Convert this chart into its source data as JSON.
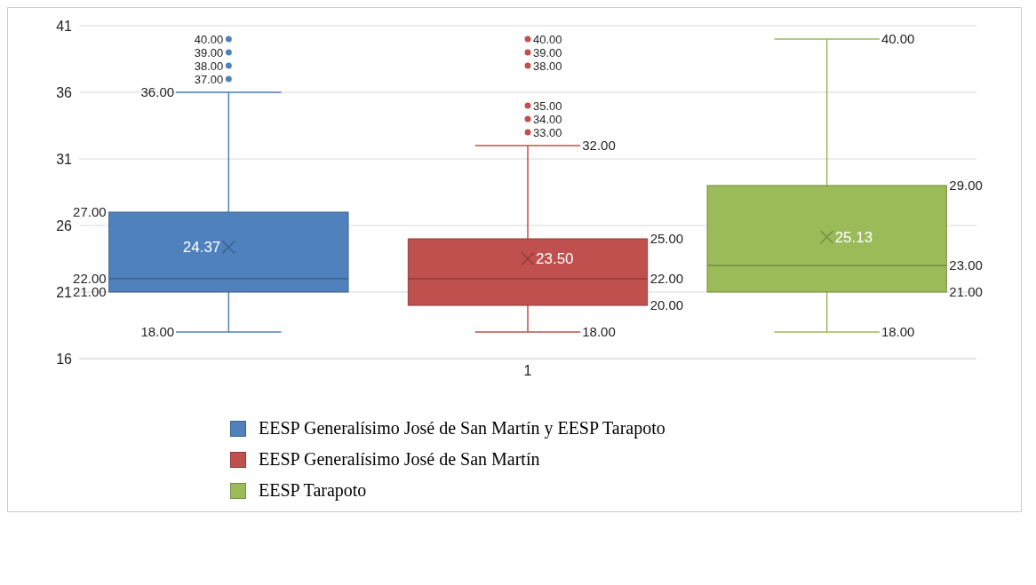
{
  "chart_data": {
    "type": "box",
    "categories": [
      "1"
    ],
    "ylim": [
      16,
      41
    ],
    "yticks": [
      16,
      21,
      26,
      31,
      36,
      41
    ],
    "grid": "y",
    "legend": "bottom",
    "series": [
      {
        "name": "EESP Generalísimo José de San Martín y EESP Tarapoto",
        "color": "#4f81bd",
        "boxes": [
          {
            "low": 18,
            "q1": 21,
            "median": 22,
            "q3": 27,
            "high": 36,
            "mean": 24.37,
            "outliers": [
              37,
              38,
              39,
              40
            ]
          }
        ]
      },
      {
        "name": "EESP Generalísimo José de San Martín",
        "color": "#c0504d",
        "boxes": [
          {
            "low": 18,
            "q1": 20,
            "median": 22,
            "q3": 25,
            "high": 32,
            "mean": 23.5,
            "outliers": [
              33,
              34,
              35,
              38,
              39,
              40
            ]
          }
        ]
      },
      {
        "name": "EESP Tarapoto",
        "color": "#9bbb59",
        "boxes": [
          {
            "low": 18,
            "q1": 21,
            "median": 23,
            "q3": 29,
            "high": 40,
            "mean": 25.13
          }
        ]
      }
    ],
    "annotations": [
      "40.00",
      "39.00",
      "38.00",
      "37.00",
      "36.00",
      "27.00",
      "24.37",
      "22.00",
      "21.00",
      "18.00",
      "40.00",
      "39.00",
      "38.00",
      "35.00",
      "34.00",
      "33.00",
      "32.00",
      "25.00",
      "23.50",
      "22.00",
      "20.00",
      "18.00",
      "40.00",
      "29.00",
      "25.13",
      "23.00",
      "21.00",
      "18.00"
    ]
  }
}
